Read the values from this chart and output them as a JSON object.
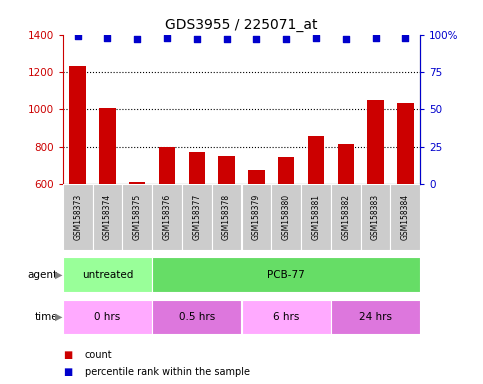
{
  "title": "GDS3955 / 225071_at",
  "samples": [
    "GSM158373",
    "GSM158374",
    "GSM158375",
    "GSM158376",
    "GSM158377",
    "GSM158378",
    "GSM158379",
    "GSM158380",
    "GSM158381",
    "GSM158382",
    "GSM158383",
    "GSM158384"
  ],
  "counts": [
    1230,
    1010,
    615,
    800,
    775,
    750,
    675,
    748,
    860,
    815,
    1050,
    1035
  ],
  "percentile_ranks": [
    99,
    98,
    97,
    98,
    97,
    97,
    97,
    97,
    98,
    97,
    98,
    98
  ],
  "bar_color": "#cc0000",
  "dot_color": "#0000cc",
  "ylim_left": [
    600,
    1400
  ],
  "ylim_right": [
    0,
    100
  ],
  "yticks_left": [
    600,
    800,
    1000,
    1200,
    1400
  ],
  "yticks_right": [
    0,
    25,
    50,
    75,
    100
  ],
  "grid_values": [
    800,
    1000,
    1200
  ],
  "agent_groups": [
    {
      "label": "untreated",
      "start": 0,
      "end": 3,
      "color": "#99ff99"
    },
    {
      "label": "PCB-77",
      "start": 3,
      "end": 12,
      "color": "#66dd66"
    }
  ],
  "time_groups": [
    {
      "label": "0 hrs",
      "start": 0,
      "end": 3,
      "color": "#ffaaff"
    },
    {
      "label": "0.5 hrs",
      "start": 3,
      "end": 6,
      "color": "#dd77dd"
    },
    {
      "label": "6 hrs",
      "start": 6,
      "end": 9,
      "color": "#ffaaff"
    },
    {
      "label": "24 hrs",
      "start": 9,
      "end": 12,
      "color": "#dd77dd"
    }
  ],
  "legend_items": [
    {
      "label": "count",
      "color": "#cc0000"
    },
    {
      "label": "percentile rank within the sample",
      "color": "#0000cc"
    }
  ],
  "tick_area_color": "#cccccc",
  "bar_width": 0.55,
  "bar_bottom": 600
}
